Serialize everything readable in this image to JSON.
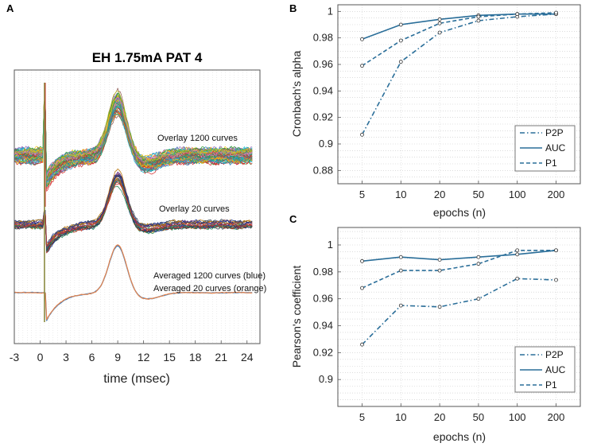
{
  "chart_data": [
    {
      "panel": "A",
      "type": "line",
      "title": "EH 1.75mA PAT 4",
      "xlabel": "time (msec)",
      "ylabel": "",
      "xticks": [
        -3,
        0,
        3,
        6,
        9,
        12,
        15,
        18,
        21,
        24
      ],
      "xlim": [
        -3,
        25.5
      ],
      "annotations": [
        "Overlay 1200 curves",
        "Overlay 20 curves",
        "Averaged 1200 curves (blue)",
        "Averaged 20 curves (orange)"
      ],
      "colors": {
        "avg_1200": "#3a7fc1",
        "avg_20": "#e8834a",
        "overlay_20": [
          "#1f3a93",
          "#c0392b",
          "#2e8b57",
          "#6c3483",
          "#2c3e50",
          "#b9770e"
        ],
        "overlay_1200": [
          "#1f77b4",
          "#ff7f0e",
          "#2ca02c",
          "#d62728",
          "#9467bd",
          "#8c564b",
          "#e377c2",
          "#7f7f7f",
          "#bcbd22",
          "#17becf",
          "#f1c40f",
          "#16a085"
        ]
      }
    },
    {
      "panel": "B",
      "type": "line",
      "xlabel": "epochs  (n)",
      "ylabel": "Cronbach's alpha",
      "categories": [
        "5",
        "10",
        "20",
        "50",
        "100",
        "200"
      ],
      "ylim": [
        0.87,
        1.005
      ],
      "yticks": [
        "0.88",
        "0.9",
        "0.92",
        "0.94",
        "0.96",
        "0.98",
        "1"
      ],
      "legend_position": "bottom-right",
      "color": "#2a6e99",
      "series": [
        {
          "name": "P2P",
          "dash": "dashdot",
          "values": [
            0.907,
            0.962,
            0.984,
            0.993,
            0.996,
            0.998
          ]
        },
        {
          "name": "AUC",
          "dash": "solid",
          "values": [
            0.979,
            0.99,
            0.994,
            0.997,
            0.998,
            0.998
          ]
        },
        {
          "name": "P1",
          "dash": "dashed",
          "values": [
            0.959,
            0.978,
            0.991,
            0.996,
            0.998,
            0.999
          ]
        }
      ]
    },
    {
      "panel": "C",
      "type": "line",
      "xlabel": "epochs  (n)",
      "ylabel": "Pearson's coefficient",
      "categories": [
        "5",
        "10",
        "20",
        "50",
        "100",
        "200"
      ],
      "ylim": [
        0.88,
        1.013
      ],
      "yticks": [
        "0.9",
        "0.92",
        "0.94",
        "0.96",
        "0.98",
        "1"
      ],
      "legend_position": "bottom-right",
      "color": "#2a6e99",
      "series": [
        {
          "name": "P2P",
          "dash": "dashdot",
          "values": [
            0.926,
            0.955,
            0.954,
            0.96,
            0.975,
            0.974
          ]
        },
        {
          "name": "AUC",
          "dash": "solid",
          "values": [
            0.988,
            0.991,
            0.989,
            0.991,
            0.993,
            0.996
          ]
        },
        {
          "name": "P1",
          "dash": "dashed",
          "values": [
            0.968,
            0.981,
            0.981,
            0.986,
            0.996,
            0.996
          ]
        }
      ]
    }
  ],
  "labels": {
    "panel_a": "A",
    "panel_b": "B",
    "panel_c": "C"
  }
}
